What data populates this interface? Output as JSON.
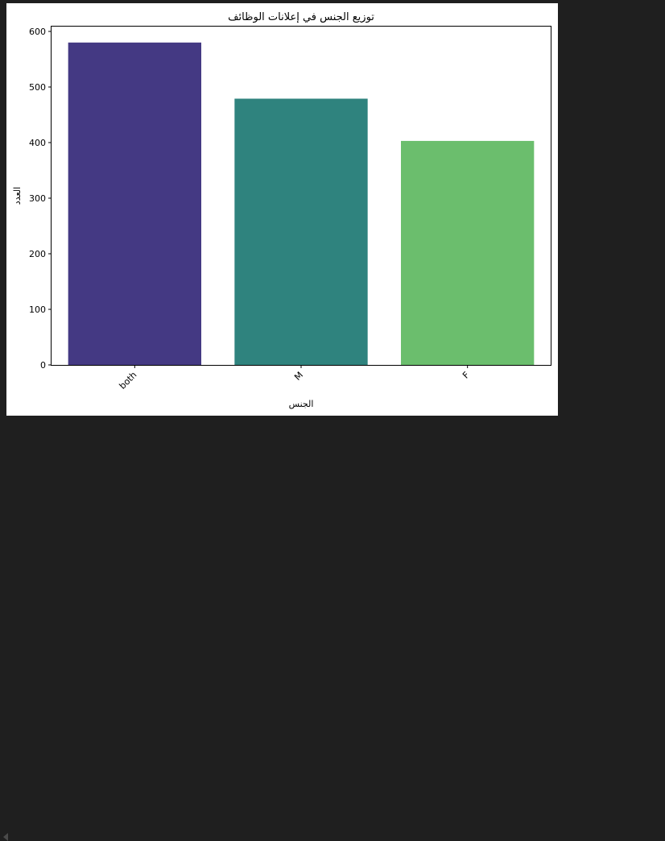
{
  "chart_data": {
    "type": "bar",
    "title": "توزيع الجنس في إعلانات الوظائف",
    "xlabel": "الجنس",
    "ylabel": "العدد",
    "categories": [
      "both",
      "M",
      "F"
    ],
    "values": [
      580,
      479,
      403
    ],
    "colors": [
      "#443983",
      "#2f837e",
      "#6bbe6d"
    ],
    "ylim": [
      0,
      610
    ],
    "yticks": [
      0,
      100,
      200,
      300,
      400,
      500,
      600
    ],
    "grid": false,
    "legend": "none"
  }
}
